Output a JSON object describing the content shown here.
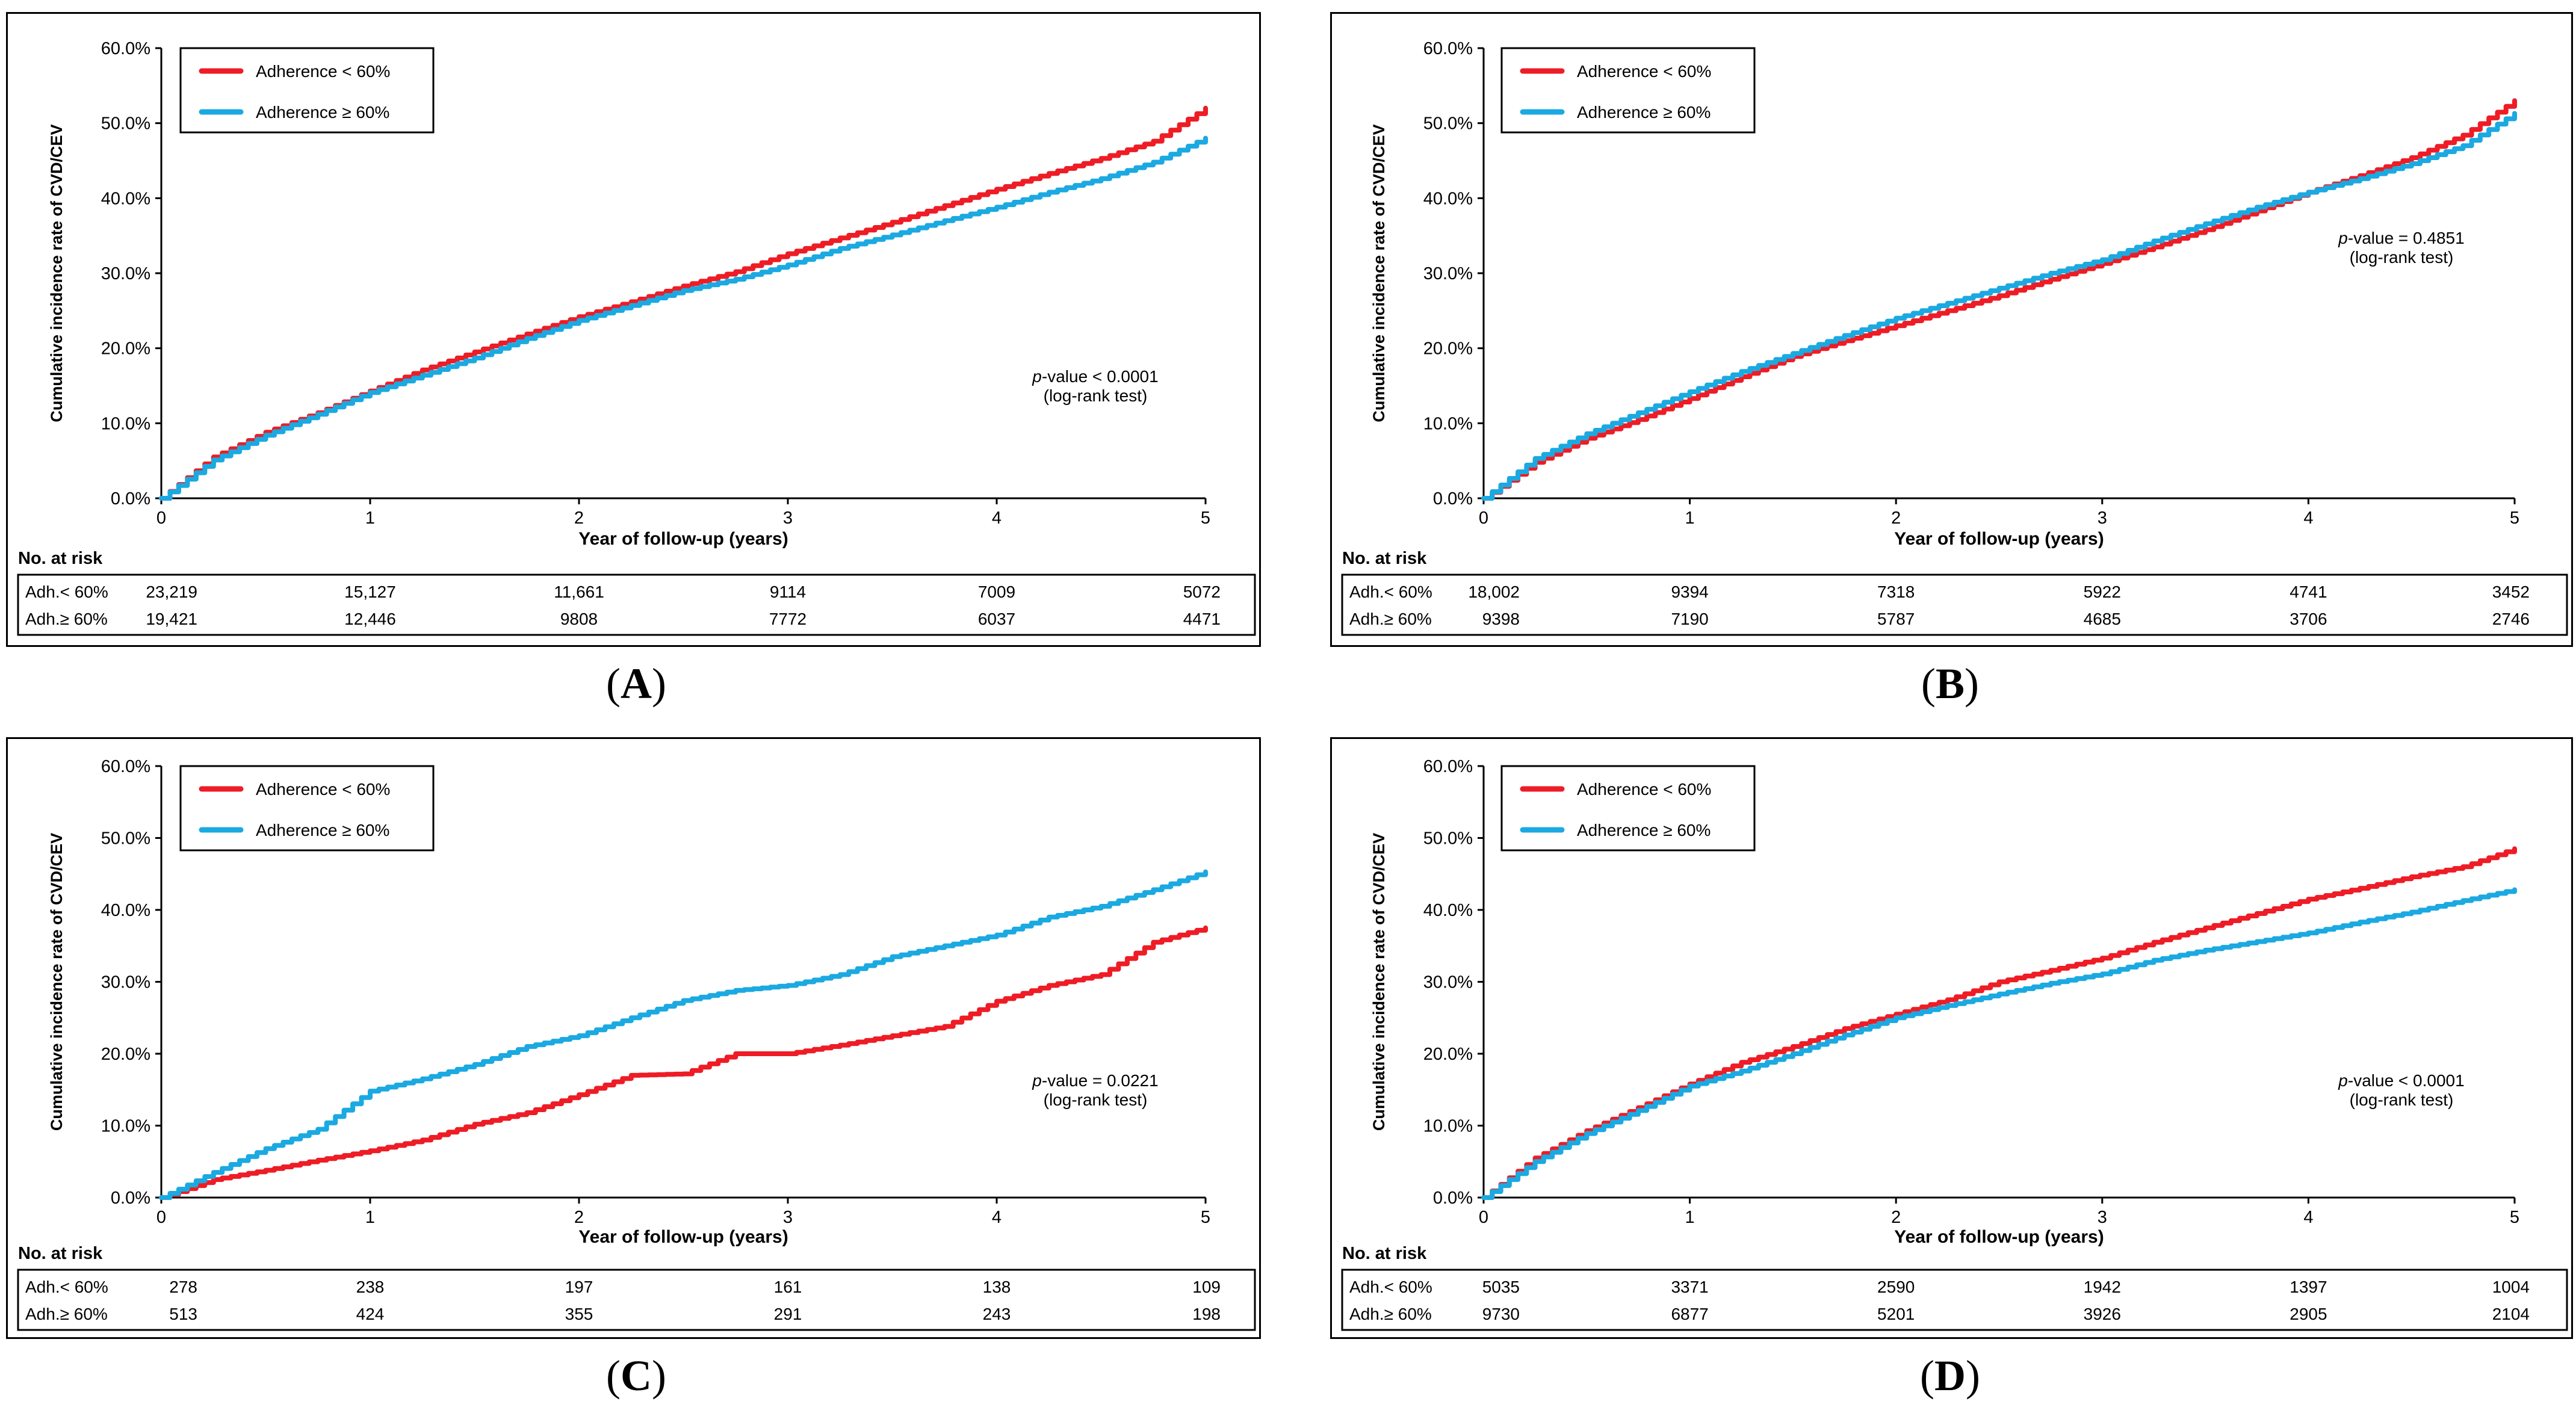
{
  "colors": {
    "red": "#ee1c25",
    "blue": "#1ba9e1"
  },
  "chart_data": [
    {
      "panel": "A",
      "type": "line",
      "ylabel": "Cumulative incidence rate of CVD/CEV",
      "xlabel": "Year of follow-up (years)",
      "xlim": [
        0,
        5
      ],
      "ylim": [
        0,
        60
      ],
      "x_ticks": [
        "0",
        "1",
        "2",
        "3",
        "4",
        "5"
      ],
      "y_ticks": [
        "0.0%",
        "10.0%",
        "20.0%",
        "30.0%",
        "40.0%",
        "50.0%",
        "60.0%"
      ],
      "legend_position": "top-left",
      "series": [
        {
          "name": "Adherence < 60%",
          "color": "#ee1c25",
          "x": [
            0,
            0.25,
            0.5,
            0.75,
            1,
            1.25,
            1.5,
            1.75,
            2,
            2.25,
            2.5,
            2.75,
            3,
            3.25,
            3.5,
            3.75,
            4,
            4.25,
            4.5,
            4.75,
            5
          ],
          "y": [
            0,
            5.5,
            8.8,
            11.4,
            14.3,
            17.1,
            19.5,
            21.9,
            24.2,
            26.2,
            28.3,
            30.2,
            32.6,
            34.7,
            36.8,
            39.0,
            41.2,
            43.3,
            45.3,
            47.6,
            52.0
          ]
        },
        {
          "name": "Adherence ≥ 60%",
          "color": "#1ba9e1",
          "x": [
            0,
            0.25,
            0.5,
            0.75,
            1,
            1.25,
            1.5,
            1.75,
            2,
            2.25,
            2.5,
            2.75,
            3,
            3.25,
            3.5,
            3.75,
            4,
            4.25,
            4.5,
            4.75,
            5
          ],
          "y": [
            0,
            5.1,
            8.4,
            11.2,
            14.1,
            16.4,
            18.7,
            21.3,
            23.7,
            25.7,
            27.7,
            29.2,
            31.1,
            33.3,
            35.1,
            37.0,
            38.8,
            40.8,
            42.6,
            44.8,
            48.0
          ]
        }
      ],
      "annotation": {
        "italic": "p",
        "rest": "-value < 0.0001",
        "line2": "(log-rank test)"
      },
      "risk_table": {
        "title": "No. at risk",
        "rows": [
          {
            "label": "Adh.< 60%",
            "values": [
              "23,219",
              "15,127",
              "11,661",
              "9114",
              "7009",
              "5072"
            ]
          },
          {
            "label": "Adh.≥ 60%",
            "values": [
              "19,421",
              "12,446",
              "9808",
              "7772",
              "6037",
              "4471"
            ]
          }
        ]
      }
    },
    {
      "panel": "B",
      "type": "line",
      "ylabel": "Cumulative incidence rate of CVD/CEV",
      "xlabel": "Year of follow-up (years)",
      "xlim": [
        0,
        5
      ],
      "ylim": [
        0,
        60
      ],
      "x_ticks": [
        "0",
        "1",
        "2",
        "3",
        "4",
        "5"
      ],
      "y_ticks": [
        "0.0%",
        "10.0%",
        "20.0%",
        "30.0%",
        "40.0%",
        "50.0%",
        "60.0%"
      ],
      "legend_position": "top-left",
      "series": [
        {
          "name": "Adherence < 60%",
          "color": "#ee1c25",
          "x": [
            0,
            0.25,
            0.5,
            0.75,
            1,
            1.25,
            1.5,
            1.75,
            2,
            2.25,
            2.5,
            2.75,
            3,
            3.25,
            3.5,
            3.75,
            4,
            4.25,
            4.5,
            4.75,
            5
          ],
          "y": [
            0,
            4.8,
            8.0,
            10.5,
            13.3,
            16.2,
            18.9,
            21.0,
            23.0,
            25.0,
            27.0,
            29.2,
            31.3,
            33.5,
            35.8,
            38.3,
            40.8,
            43.0,
            45.4,
            48.4,
            53.0
          ]
        },
        {
          "name": "Adherence ≥ 60%",
          "color": "#1ba9e1",
          "x": [
            0,
            0.25,
            0.5,
            0.75,
            1,
            1.25,
            1.5,
            1.75,
            2,
            2.25,
            2.5,
            2.75,
            3,
            3.25,
            3.5,
            3.75,
            4,
            4.25,
            4.5,
            4.75,
            5
          ],
          "y": [
            0,
            5.3,
            8.6,
            11.4,
            14.2,
            16.9,
            19.3,
            21.7,
            24.0,
            26.0,
            28.0,
            30.0,
            31.8,
            34.3,
            36.6,
            38.8,
            40.8,
            42.6,
            44.6,
            47.0,
            51.3
          ]
        }
      ],
      "annotation": {
        "italic": "p",
        "rest": "-value = 0.4851",
        "line2": "(log-rank test)"
      },
      "risk_table": {
        "title": "No. at risk",
        "rows": [
          {
            "label": "Adh.< 60%",
            "values": [
              "18,002",
              "9394",
              "7318",
              "5922",
              "4741",
              "3452"
            ]
          },
          {
            "label": "Adh.≥ 60%",
            "values": [
              "9398",
              "7190",
              "5787",
              "4685",
              "3706",
              "2746"
            ]
          }
        ]
      }
    },
    {
      "panel": "C",
      "type": "line",
      "ylabel": "Cumulative incidence rate of CVD/CEV",
      "xlabel": "Year of follow-up (years)",
      "xlim": [
        0,
        5
      ],
      "ylim": [
        0,
        60
      ],
      "x_ticks": [
        "0",
        "1",
        "2",
        "3",
        "4",
        "5"
      ],
      "y_ticks": [
        "0.0%",
        "10.0%",
        "20.0%",
        "30.0%",
        "40.0%",
        "50.0%",
        "60.0%"
      ],
      "legend_position": "top-left",
      "series": [
        {
          "name": "Adherence < 60%",
          "color": "#ee1c25",
          "x": [
            0,
            0.25,
            0.5,
            0.75,
            1,
            1.25,
            1.5,
            1.75,
            2,
            2.25,
            2.5,
            2.75,
            3,
            3.25,
            3.5,
            3.75,
            4,
            4.25,
            4.5,
            4.75,
            5
          ],
          "y": [
            0,
            2.5,
            3.8,
            5.2,
            6.5,
            8.0,
            10.2,
            11.8,
            14.3,
            17.0,
            17.2,
            20.0,
            20.0,
            21.2,
            22.5,
            23.8,
            27.3,
            29.5,
            31.0,
            35.5,
            37.5
          ]
        },
        {
          "name": "Adherence ≥ 60%",
          "color": "#1ba9e1",
          "x": [
            0,
            0.25,
            0.5,
            0.75,
            1,
            1.25,
            1.5,
            1.75,
            2,
            2.25,
            2.5,
            2.75,
            3,
            3.25,
            3.5,
            3.75,
            4,
            4.25,
            4.5,
            4.75,
            5
          ],
          "y": [
            0,
            3.5,
            6.8,
            9.5,
            14.8,
            16.5,
            18.5,
            21.0,
            22.5,
            25.0,
            27.4,
            28.8,
            29.5,
            31.0,
            33.5,
            35.0,
            36.5,
            39.0,
            40.5,
            42.8,
            45.3
          ]
        }
      ],
      "annotation": {
        "italic": "p",
        "rest": "-value = 0.0221",
        "line2": "(log-rank test)"
      },
      "risk_table": {
        "title": "No. at risk",
        "rows": [
          {
            "label": "Adh.< 60%",
            "values": [
              "278",
              "238",
              "197",
              "161",
              "138",
              "109"
            ]
          },
          {
            "label": "Adh.≥ 60%",
            "values": [
              "513",
              "424",
              "355",
              "291",
              "243",
              "198"
            ]
          }
        ]
      }
    },
    {
      "panel": "D",
      "type": "line",
      "ylabel": "Cumulative incidence rate of CVD/CEV",
      "xlabel": "Year of follow-up (years)",
      "xlim": [
        0,
        5
      ],
      "ylim": [
        0,
        60
      ],
      "x_ticks": [
        "0",
        "1",
        "2",
        "3",
        "4",
        "5"
      ],
      "y_ticks": [
        "0.0%",
        "10.0%",
        "20.0%",
        "30.0%",
        "40.0%",
        "50.0%",
        "60.0%"
      ],
      "legend_position": "top-left",
      "series": [
        {
          "name": "Adherence < 60%",
          "color": "#ee1c25",
          "x": [
            0,
            0.25,
            0.5,
            0.75,
            1,
            1.25,
            1.5,
            1.75,
            2,
            2.25,
            2.5,
            2.75,
            3,
            3.25,
            3.5,
            3.75,
            4,
            4.25,
            4.5,
            4.75,
            5
          ],
          "y": [
            0,
            5.5,
            9.3,
            12.5,
            15.8,
            18.8,
            21.0,
            23.5,
            25.5,
            27.5,
            30.0,
            31.6,
            33.3,
            35.5,
            37.5,
            39.5,
            41.5,
            43.0,
            44.6,
            46.0,
            48.5
          ]
        },
        {
          "name": "Adherence ≥ 60%",
          "color": "#1ba9e1",
          "x": [
            0,
            0.25,
            0.5,
            0.75,
            1,
            1.25,
            1.5,
            1.75,
            2,
            2.25,
            2.5,
            2.75,
            3,
            3.25,
            3.5,
            3.75,
            4,
            4.25,
            4.5,
            4.75,
            5
          ],
          "y": [
            0,
            5.0,
            8.9,
            12.1,
            15.5,
            17.6,
            20.0,
            22.6,
            25.0,
            26.7,
            28.3,
            29.8,
            31.1,
            33.0,
            34.4,
            35.6,
            36.8,
            38.3,
            39.7,
            41.3,
            42.8
          ]
        }
      ],
      "annotation": {
        "italic": "p",
        "rest": "-value < 0.0001",
        "line2": "(log-rank test)"
      },
      "risk_table": {
        "title": "No. at risk",
        "rows": [
          {
            "label": "Adh.< 60%",
            "values": [
              "5035",
              "3371",
              "2590",
              "1942",
              "1397",
              "1004"
            ]
          },
          {
            "label": "Adh.≥ 60%",
            "values": [
              "9730",
              "6877",
              "5201",
              "3926",
              "2905",
              "2104"
            ]
          }
        ]
      }
    }
  ],
  "panel_labels": [
    "A",
    "B",
    "C",
    "D"
  ]
}
